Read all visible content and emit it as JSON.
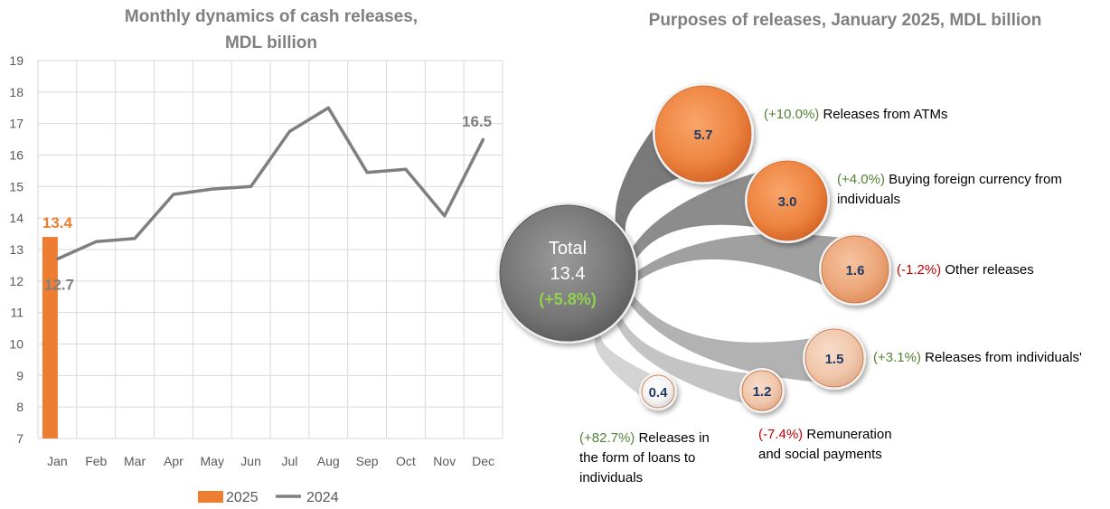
{
  "colors": {
    "bar2025": "#ed7d31",
    "line2024": "#7f7f7f",
    "positive": "#548235",
    "negative": "#c00000",
    "grid": "#d9d9d9",
    "title": "#7f7f7f"
  },
  "chart_data": [
    {
      "type": "bar+line",
      "title": "Monthly dynamics of cash releases,\nMDL billion",
      "title_lines": [
        "Monthly dynamics of cash releases,",
        "MDL billion"
      ],
      "categories": [
        "Jan",
        "Feb",
        "Mar",
        "Apr",
        "May",
        "Jun",
        "Jul",
        "Aug",
        "Sep",
        "Oct",
        "Nov",
        "Dec"
      ],
      "ylim": [
        7,
        19
      ],
      "yticks": [
        7,
        8,
        9,
        10,
        11,
        12,
        13,
        14,
        15,
        16,
        17,
        18,
        19
      ],
      "grid": true,
      "legend": "bottom",
      "series": [
        {
          "name": "2025",
          "kind": "bar",
          "color": "#ed7d31",
          "values": [
            13.4,
            null,
            null,
            null,
            null,
            null,
            null,
            null,
            null,
            null,
            null,
            null
          ],
          "labels": [
            {
              "index": 0,
              "text": "13.4"
            }
          ]
        },
        {
          "name": "2024",
          "kind": "line",
          "color": "#7f7f7f",
          "values": [
            12.7,
            13.25,
            13.35,
            14.75,
            14.92,
            15.0,
            16.75,
            17.5,
            15.45,
            15.55,
            14.07,
            16.5
          ],
          "labels": [
            {
              "index": 0,
              "text": "12.7"
            },
            {
              "index": 11,
              "text": "16.5"
            }
          ]
        }
      ]
    },
    {
      "type": "bubble",
      "title": "Purposes of releases, January 2025, MDL billion",
      "total": {
        "label": "Total",
        "value": "13.4",
        "change": "(+5.8%)"
      },
      "items": [
        {
          "value": "5.7",
          "change": "(+10.0%)",
          "label_lines": [
            "Releases from ATMs"
          ],
          "positive": true
        },
        {
          "value": "3.0",
          "change": "(+4.0%)",
          "label_lines": [
            "Buying foreign currency from",
            "individuals"
          ],
          "positive": true
        },
        {
          "value": "1.6",
          "change": "(-1.2%)",
          "label_lines": [
            "Other releases"
          ],
          "positive": false
        },
        {
          "value": "1.5",
          "change": "(+3.1%)",
          "label_lines": [
            "Releases from individuals'"
          ],
          "positive": true
        },
        {
          "value": "1.2",
          "change": "(-7.4%)",
          "label_lines": [
            "Remuneration",
            "and social payments"
          ],
          "positive": false
        },
        {
          "value": "0.4",
          "change": "(+82.7%)",
          "label_lines": [
            "Releases in",
            "the form of loans to",
            "individuals"
          ],
          "positive": true
        }
      ]
    }
  ]
}
